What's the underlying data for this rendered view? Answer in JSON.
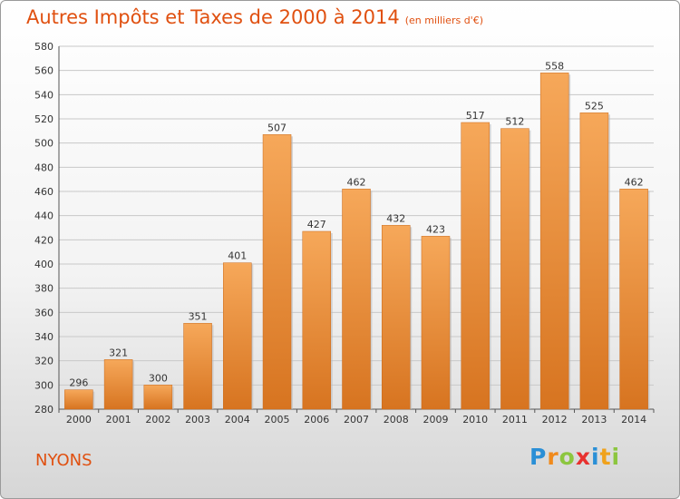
{
  "title": "Autres Impôts et Taxes de 2000 à 2014",
  "unit_note": "(en milliers d'€)",
  "city": "NYONS",
  "brand": {
    "name": "Proxiti",
    "letters": [
      {
        "char": "P",
        "color": "#2a8fd6"
      },
      {
        "char": "r",
        "color": "#f08a1c"
      },
      {
        "char": "o",
        "color": "#8cc63f"
      },
      {
        "char": "x",
        "color": "#e8312f"
      },
      {
        "char": "i",
        "color": "#2a8fd6"
      },
      {
        "char": "t",
        "color": "#f0a21c"
      },
      {
        "char": "i",
        "color": "#8cc63f"
      }
    ]
  },
  "colors": {
    "title": "#e05010",
    "bar_top": "#f6a85a",
    "bar_bottom": "#d77420",
    "grid": "#c8c8c8"
  },
  "chart_data": {
    "type": "bar",
    "title": "Autres Impôts et Taxes de 2000 à 2014",
    "xlabel": "",
    "ylabel": "",
    "categories": [
      "2000",
      "2001",
      "2002",
      "2003",
      "2004",
      "2005",
      "2006",
      "2007",
      "2008",
      "2009",
      "2010",
      "2011",
      "2012",
      "2013",
      "2014"
    ],
    "values": [
      296,
      321,
      300,
      351,
      401,
      507,
      427,
      462,
      432,
      423,
      517,
      512,
      558,
      525,
      462
    ],
    "ylim": [
      280,
      580
    ],
    "ytick_step": 20,
    "grid": true,
    "legend": "none"
  }
}
